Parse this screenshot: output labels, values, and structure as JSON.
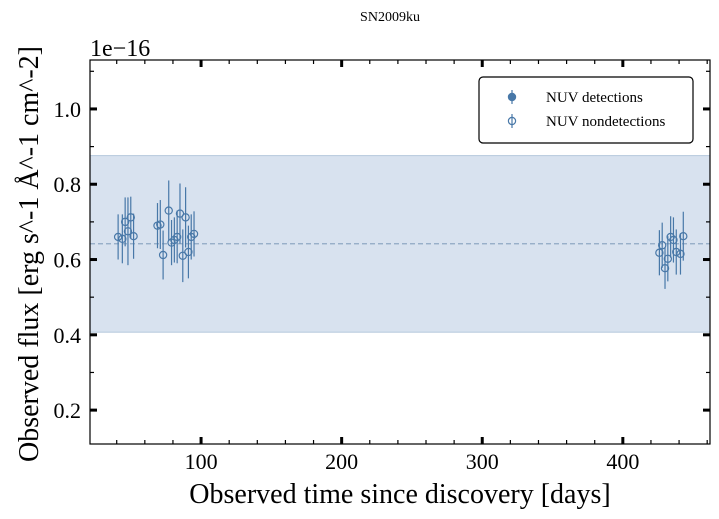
{
  "chart_data": {
    "type": "scatter",
    "title": "SN2009ku",
    "xlabel": "Observed time since discovery [days]",
    "ylabel": "Observed flux [erg s^-1 Å^-1 cm^-2]",
    "y_offset_label": "1e−16",
    "xlim": [
      21,
      462
    ],
    "ylim": [
      0.11,
      1.13
    ],
    "x_ticks": [
      100,
      200,
      300,
      400
    ],
    "y_ticks": [
      0.2,
      0.4,
      0.6,
      0.8,
      1.0
    ],
    "x_tick_labels": [
      "100",
      "200",
      "300",
      "400"
    ],
    "y_tick_labels": [
      "0.2",
      "0.4",
      "0.6",
      "0.8",
      "1.0"
    ],
    "mean_line": 0.642,
    "band": [
      0.407,
      0.876
    ],
    "legend": {
      "placement": "upper-right",
      "entries": [
        {
          "label": "NUV detections",
          "marker": "filled-circle"
        },
        {
          "label": "NUV nondetections",
          "marker": "open-circle"
        }
      ]
    },
    "colors": {
      "series": "#4878a8",
      "band": "#d8e2ef",
      "band_edge": "#b4c8dc",
      "mean_line": "#8fa8c4"
    },
    "series": [
      {
        "name": "NUV detections",
        "points": []
      },
      {
        "name": "NUV nondetections",
        "points": [
          {
            "x": 41,
            "y": 0.66,
            "err": 0.06
          },
          {
            "x": 44,
            "y": 0.655,
            "err": 0.065
          },
          {
            "x": 46,
            "y": 0.7,
            "err": 0.065
          },
          {
            "x": 48,
            "y": 0.675,
            "err": 0.09
          },
          {
            "x": 50,
            "y": 0.712,
            "err": 0.055
          },
          {
            "x": 52,
            "y": 0.662,
            "err": 0.06
          },
          {
            "x": 69,
            "y": 0.69,
            "err": 0.06
          },
          {
            "x": 71,
            "y": 0.693,
            "err": 0.065
          },
          {
            "x": 73,
            "y": 0.612,
            "err": 0.065
          },
          {
            "x": 77,
            "y": 0.73,
            "err": 0.08
          },
          {
            "x": 79,
            "y": 0.645,
            "err": 0.06
          },
          {
            "x": 81,
            "y": 0.652,
            "err": 0.06
          },
          {
            "x": 83,
            "y": 0.66,
            "err": 0.07
          },
          {
            "x": 85,
            "y": 0.722,
            "err": 0.08
          },
          {
            "x": 87,
            "y": 0.61,
            "err": 0.07
          },
          {
            "x": 89,
            "y": 0.712,
            "err": 0.08
          },
          {
            "x": 91,
            "y": 0.62,
            "err": 0.07
          },
          {
            "x": 93,
            "y": 0.66,
            "err": 0.06
          },
          {
            "x": 95,
            "y": 0.668,
            "err": 0.06
          },
          {
            "x": 426,
            "y": 0.618,
            "err": 0.06
          },
          {
            "x": 428,
            "y": 0.638,
            "err": 0.06
          },
          {
            "x": 430,
            "y": 0.577,
            "err": 0.055
          },
          {
            "x": 432,
            "y": 0.602,
            "err": 0.06
          },
          {
            "x": 434,
            "y": 0.66,
            "err": 0.055
          },
          {
            "x": 436,
            "y": 0.652,
            "err": 0.06
          },
          {
            "x": 438,
            "y": 0.62,
            "err": 0.06
          },
          {
            "x": 441,
            "y": 0.615,
            "err": 0.055
          },
          {
            "x": 443,
            "y": 0.662,
            "err": 0.065
          }
        ]
      }
    ]
  }
}
